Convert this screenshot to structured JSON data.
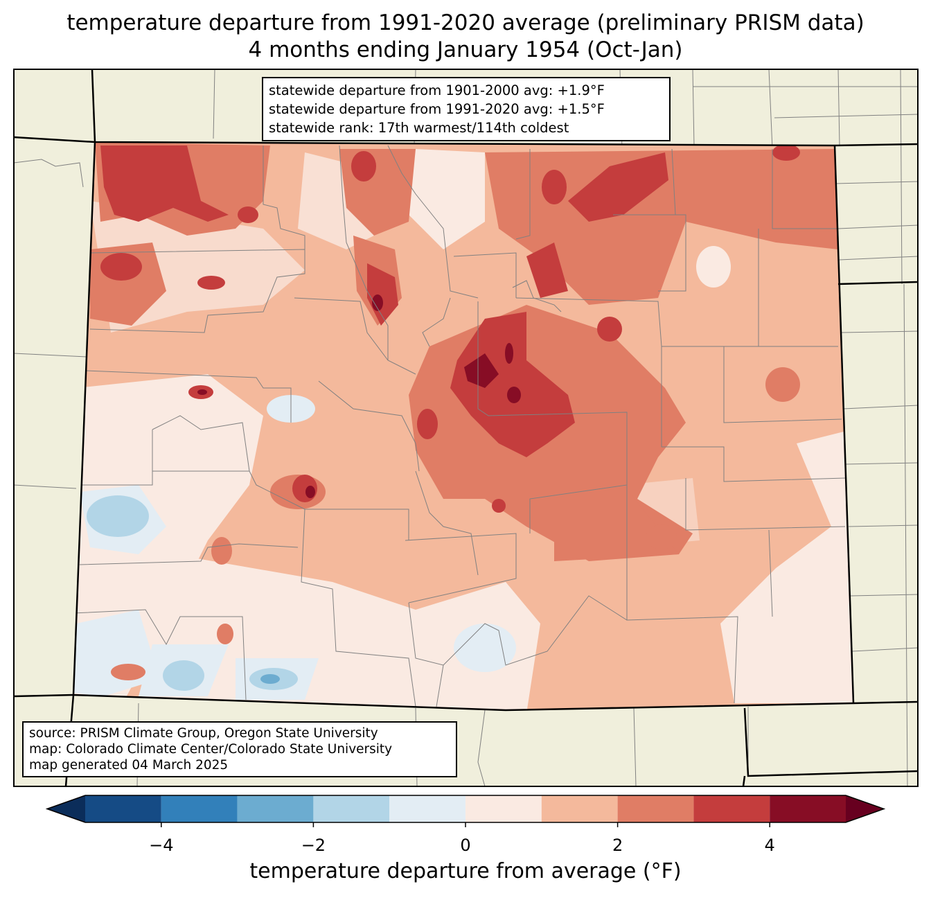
{
  "title": {
    "line1": "temperature departure from 1991-2020 average (preliminary PRISM data)",
    "line2": "4 months ending January 1954 (Oct-Jan)"
  },
  "stats": {
    "line1": "statewide departure from 1901-2000 avg: +1.9°F",
    "line2": "statewide departure from 1991-2020 avg: +1.5°F",
    "line3": "statewide rank: 17th warmest/114th coldest"
  },
  "source": {
    "line1": "source: PRISM Climate Group, Oregon State University",
    "line2": "map: Colorado Climate Center/Colorado State University",
    "line3": "map generated 04 March 2025"
  },
  "colorbar": {
    "label": "temperature departure from average (°F)",
    "ticks": [
      "−4",
      "−2",
      "0",
      "2",
      "4"
    ],
    "tick_values": [
      -4,
      -2,
      0,
      2,
      4
    ],
    "range": [
      -5,
      5
    ],
    "colors": [
      "#154b85",
      "#3280ba",
      "#6cacd0",
      "#b2d5e7",
      "#e3edf4",
      "#faeae2",
      "#f4b99c",
      "#e07d65",
      "#c43d3d",
      "#870d25"
    ],
    "extend_low": "#0b2d5a",
    "extend_high": "#67001f"
  },
  "map_colors": {
    "land": "#f0efdc",
    "border": "#000000",
    "county": "#808080"
  }
}
